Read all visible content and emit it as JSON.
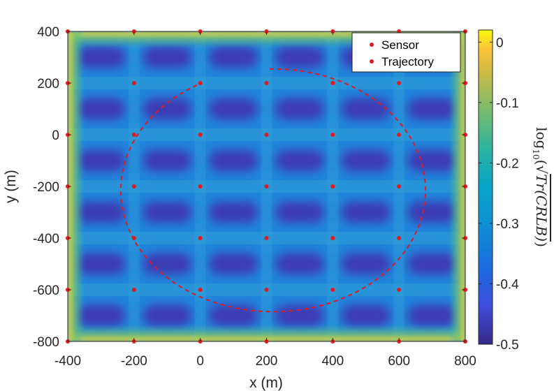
{
  "chart_data": {
    "type": "heatmap",
    "xlabel": "x (m)",
    "ylabel": "y (m)",
    "xlim": [
      -400,
      800
    ],
    "ylim": [
      -800,
      400
    ],
    "xticks": [
      -400,
      -200,
      0,
      200,
      400,
      600,
      800
    ],
    "yticks": [
      -800,
      -600,
      -400,
      -200,
      0,
      200,
      400
    ],
    "xtick_labels": [
      "-400",
      "-200",
      "0",
      "200",
      "400",
      "600",
      "800"
    ],
    "ytick_labels": [
      "-800",
      "-600",
      "-400",
      "-200",
      "0",
      "200",
      "400"
    ],
    "colorbar": {
      "label": "log10(√Tr(CRLB))",
      "label_parts": {
        "log": "log",
        "sub": "10",
        "arg": "Tr(CRLB)"
      },
      "range": [
        -0.5,
        0.02
      ],
      "ticks": [
        0,
        -0.1,
        -0.2,
        -0.3,
        -0.4,
        -0.5
      ],
      "tick_labels": [
        "0",
        "-0.1",
        "-0.2",
        "-0.3",
        "-0.4",
        "-0.5"
      ],
      "colormap": "parula"
    },
    "sensor_x": [
      -400,
      -200,
      0,
      200,
      400,
      600,
      800
    ],
    "sensor_y": [
      400,
      200,
      0,
      -200,
      -400,
      -600,
      -800
    ],
    "trajectory": {
      "shape": "ellipse",
      "center": [
        220,
        -215
      ],
      "radius_x": 460,
      "radius_y": 470,
      "start_angle_deg": 120,
      "end_angle_deg": 452,
      "color": "#e41a1c",
      "style": "dashed"
    },
    "legend": {
      "position": "top-right",
      "entries": [
        {
          "label": "Sensor",
          "color": "#e41a1c"
        },
        {
          "label": "Trajectory",
          "color": "#e41a1c"
        }
      ]
    },
    "grid": false
  }
}
